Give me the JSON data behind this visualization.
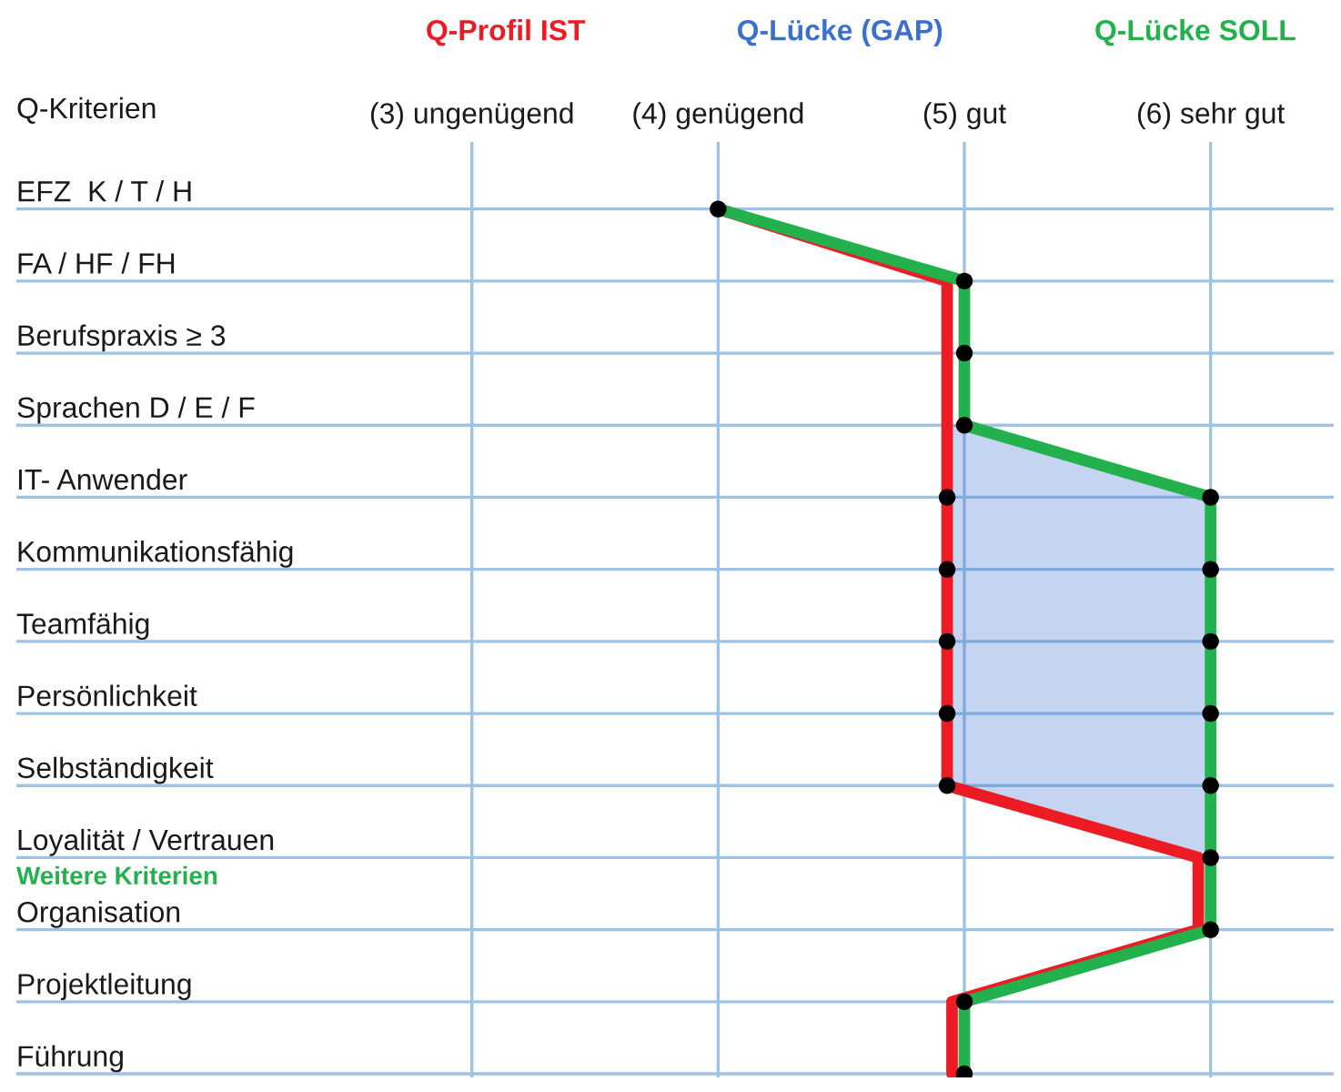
{
  "chart_data": {
    "type": "line",
    "orientation": "horizontal",
    "ylabel": "Q-Kriterien",
    "categories": [
      "EFZ  K / T / H",
      "FA / HF / FH",
      "Berufspraxis ≥ 3",
      "Sprachen D / E / F",
      "IT- Anwender",
      "Kommunikationsfähig",
      "Teamfähig",
      "Persönlichkeit",
      "Selbständigkeit",
      "Loyalität / Vertrauen",
      "Organisation",
      "Projektleitung",
      "Führung"
    ],
    "series": [
      {
        "name": "Q-Profil IST",
        "color": "#ed1c24",
        "values": [
          4,
          4.93,
          4.93,
          4.93,
          4.93,
          4.93,
          4.93,
          4.93,
          4.93,
          5.95,
          5.95,
          4.95,
          4.95
        ]
      },
      {
        "name": "Q-Lücke (GAP)",
        "type": "area",
        "color": "#3b6fd0",
        "values": [
          null,
          null,
          null,
          5,
          6,
          6,
          6,
          6,
          6,
          6,
          null,
          null,
          null
        ]
      },
      {
        "name": "Q-Lücke SOLL",
        "color": "#22b14c",
        "values": [
          4,
          5,
          5,
          5,
          6,
          6,
          6,
          6,
          6,
          6,
          6,
          5,
          5
        ]
      },
      {
        "type": "scatter",
        "color": "#000000",
        "marker": "circle",
        "values": [
          null,
          null,
          null,
          null,
          4.93,
          4.93,
          4.93,
          4.93,
          4.93,
          null,
          null,
          null,
          null
        ]
      },
      {
        "type": "scatter",
        "color": "#000000",
        "marker": "circle",
        "values": [
          4,
          5,
          5,
          5,
          6,
          6,
          6,
          6,
          6,
          6,
          6,
          5,
          5
        ]
      }
    ],
    "xlim": [
      1.15,
      6.5
    ],
    "xticks": [
      {
        "value": 3,
        "label": "(3) ungenügend"
      },
      {
        "value": 4,
        "label": "(4) genügend"
      },
      {
        "value": 5,
        "label": "(5) gut"
      },
      {
        "value": 6,
        "label": "(6) sehr gut"
      }
    ],
    "annotations": [
      "Weitere Kriterien"
    ],
    "grid": true,
    "legend": "top",
    "line_style": "solid"
  }
}
